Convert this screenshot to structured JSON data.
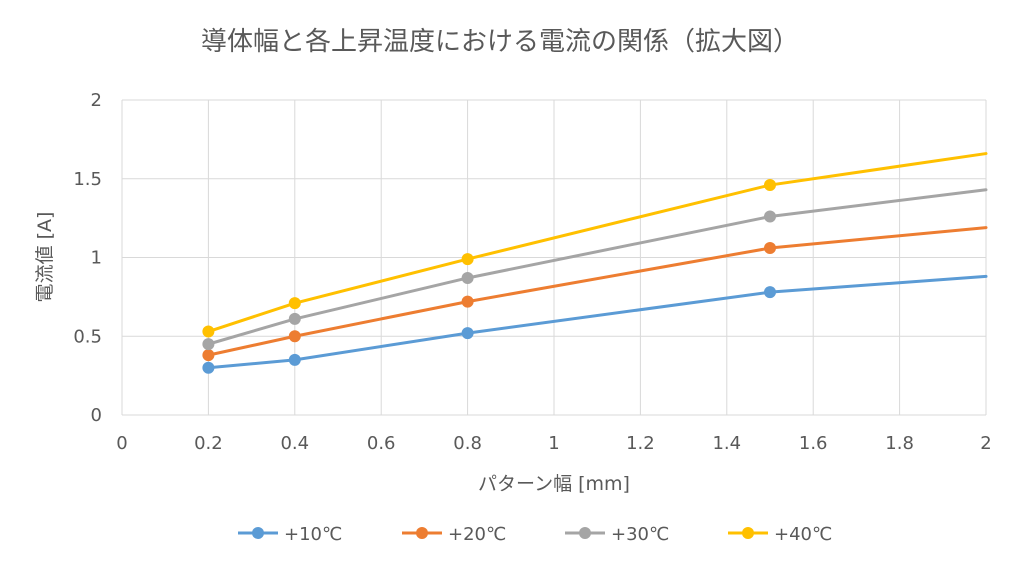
{
  "chart_data": {
    "type": "line",
    "title": "導体幅と各上昇温度における電流の関係（拡大図）",
    "xlabel": "パターン幅 [mm]",
    "ylabel": "電流値 [A]",
    "xlim": [
      0,
      2
    ],
    "ylim": [
      0,
      2
    ],
    "x_ticks": [
      "0",
      "0.2",
      "0.4",
      "0.6",
      "0.8",
      "1",
      "1.2",
      "1.4",
      "1.6",
      "1.8",
      "2"
    ],
    "y_ticks": [
      "0",
      "0.5",
      "1",
      "1.5",
      "2"
    ],
    "grid": true,
    "legend_position": "bottom",
    "series": [
      {
        "name": "+10℃",
        "color": "#5B9BD5",
        "x": [
          0.2,
          0.4,
          0.8,
          1.5
        ],
        "y": [
          0.3,
          0.35,
          0.52,
          0.78
        ],
        "end": {
          "x": 2,
          "y": 0.88
        }
      },
      {
        "name": "+20℃",
        "color": "#ED7D31",
        "x": [
          0.2,
          0.4,
          0.8,
          1.5
        ],
        "y": [
          0.38,
          0.5,
          0.72,
          1.06
        ],
        "end": {
          "x": 2,
          "y": 1.19
        }
      },
      {
        "name": "+30℃",
        "color": "#A5A5A5",
        "x": [
          0.2,
          0.4,
          0.8,
          1.5
        ],
        "y": [
          0.45,
          0.61,
          0.87,
          1.26
        ],
        "end": {
          "x": 2,
          "y": 1.43
        }
      },
      {
        "name": "+40℃",
        "color": "#FFC000",
        "x": [
          0.2,
          0.4,
          0.8,
          1.5
        ],
        "y": [
          0.53,
          0.71,
          0.99,
          1.46
        ],
        "end": {
          "x": 2,
          "y": 1.66
        }
      }
    ]
  }
}
